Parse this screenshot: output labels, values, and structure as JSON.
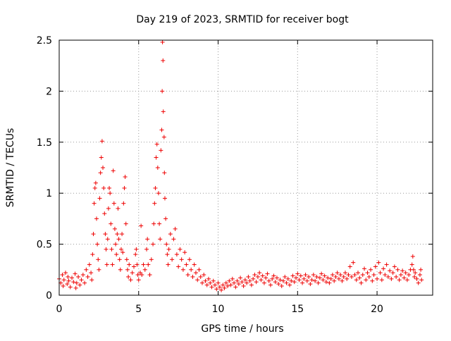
{
  "chart_data": {
    "type": "scatter",
    "title": "Day 219 of 2023, SRMTID for receiver bogt",
    "xlabel": "GPS time / hours",
    "ylabel": "SRMTID / TECUs",
    "xlim": [
      0,
      23.5
    ],
    "ylim": [
      0,
      2.5
    ],
    "x_ticks": [
      0,
      5,
      10,
      15,
      20
    ],
    "x_tick_labels": [
      "0",
      "5",
      "10",
      "15",
      "20"
    ],
    "y_ticks": [
      0,
      0.5,
      1,
      1.5,
      2,
      2.5
    ],
    "y_tick_labels": [
      "0",
      "0.5",
      "1",
      "1.5",
      "2",
      "2.5"
    ],
    "grid": true,
    "marker": "+",
    "color": "#ee0000",
    "series": [
      {
        "name": "SRMTID",
        "points": [
          [
            0.0,
            0.16
          ],
          [
            0.1,
            0.12
          ],
          [
            0.2,
            0.2
          ],
          [
            0.25,
            0.09
          ],
          [
            0.3,
            0.15
          ],
          [
            0.4,
            0.22
          ],
          [
            0.5,
            0.11
          ],
          [
            0.55,
            0.18
          ],
          [
            0.6,
            0.14
          ],
          [
            0.7,
            0.08
          ],
          [
            0.8,
            0.17
          ],
          [
            0.9,
            0.13
          ],
          [
            1.0,
            0.21
          ],
          [
            1.05,
            0.07
          ],
          [
            1.1,
            0.12
          ],
          [
            1.2,
            0.18
          ],
          [
            1.3,
            0.1
          ],
          [
            1.4,
            0.15
          ],
          [
            1.5,
            0.2
          ],
          [
            1.6,
            0.12
          ],
          [
            1.7,
            0.25
          ],
          [
            1.8,
            0.18
          ],
          [
            1.9,
            0.3
          ],
          [
            2.0,
            0.22
          ],
          [
            2.05,
            0.15
          ],
          [
            2.1,
            0.4
          ],
          [
            2.15,
            0.6
          ],
          [
            2.2,
            0.9
          ],
          [
            2.25,
            1.05
          ],
          [
            2.3,
            1.1
          ],
          [
            2.35,
            0.75
          ],
          [
            2.4,
            0.5
          ],
          [
            2.45,
            0.35
          ],
          [
            2.5,
            0.25
          ],
          [
            2.55,
            0.95
          ],
          [
            2.6,
            1.2
          ],
          [
            2.65,
            1.35
          ],
          [
            2.7,
            1.51
          ],
          [
            2.75,
            1.25
          ],
          [
            2.8,
            1.05
          ],
          [
            2.85,
            0.8
          ],
          [
            2.9,
            0.6
          ],
          [
            2.95,
            0.45
          ],
          [
            3.0,
            0.3
          ],
          [
            3.05,
            0.55
          ],
          [
            3.1,
            0.85
          ],
          [
            3.15,
            1.05
          ],
          [
            3.2,
            1.0
          ],
          [
            3.25,
            0.7
          ],
          [
            3.3,
            0.45
          ],
          [
            3.35,
            0.3
          ],
          [
            3.4,
            1.22
          ],
          [
            3.45,
            0.9
          ],
          [
            3.5,
            0.65
          ],
          [
            3.55,
            0.5
          ],
          [
            3.6,
            0.4
          ],
          [
            3.65,
            0.6
          ],
          [
            3.7,
            0.85
          ],
          [
            3.75,
            0.55
          ],
          [
            3.8,
            0.35
          ],
          [
            3.85,
            0.25
          ],
          [
            3.9,
            0.45
          ],
          [
            3.95,
            0.6
          ],
          [
            4.0,
            0.42
          ],
          [
            4.05,
            0.9
          ],
          [
            4.1,
            1.05
          ],
          [
            4.15,
            1.16
          ],
          [
            4.2,
            0.7
          ],
          [
            4.25,
            0.35
          ],
          [
            4.3,
            0.25
          ],
          [
            4.35,
            0.18
          ],
          [
            4.4,
            0.3
          ],
          [
            4.5,
            0.15
          ],
          [
            4.6,
            0.22
          ],
          [
            4.7,
            0.28
          ],
          [
            4.8,
            0.4
          ],
          [
            4.85,
            0.45
          ],
          [
            4.9,
            0.3
          ],
          [
            4.95,
            0.2
          ],
          [
            5.0,
            0.15
          ],
          [
            5.1,
            0.22
          ],
          [
            5.15,
            0.68
          ],
          [
            5.2,
            0.2
          ],
          [
            5.3,
            0.3
          ],
          [
            5.4,
            0.25
          ],
          [
            5.5,
            0.45
          ],
          [
            5.55,
            0.55
          ],
          [
            5.6,
            0.3
          ],
          [
            5.7,
            0.2
          ],
          [
            5.8,
            0.35
          ],
          [
            5.9,
            0.5
          ],
          [
            5.95,
            0.7
          ],
          [
            6.0,
            0.9
          ],
          [
            6.05,
            1.05
          ],
          [
            6.1,
            1.35
          ],
          [
            6.15,
            1.48
          ],
          [
            6.2,
            1.25
          ],
          [
            6.25,
            1.0
          ],
          [
            6.3,
            0.7
          ],
          [
            6.35,
            0.55
          ],
          [
            6.4,
            1.42
          ],
          [
            6.45,
            1.62
          ],
          [
            6.48,
            2.0
          ],
          [
            6.5,
            2.48
          ],
          [
            6.53,
            2.3
          ],
          [
            6.55,
            1.8
          ],
          [
            6.6,
            1.55
          ],
          [
            6.62,
            1.2
          ],
          [
            6.65,
            0.95
          ],
          [
            6.7,
            0.75
          ],
          [
            6.75,
            0.5
          ],
          [
            6.8,
            0.4
          ],
          [
            6.85,
            0.3
          ],
          [
            6.9,
            0.45
          ],
          [
            7.0,
            0.6
          ],
          [
            7.1,
            0.35
          ],
          [
            7.2,
            0.55
          ],
          [
            7.3,
            0.65
          ],
          [
            7.4,
            0.4
          ],
          [
            7.5,
            0.28
          ],
          [
            7.6,
            0.45
          ],
          [
            7.7,
            0.35
          ],
          [
            7.8,
            0.25
          ],
          [
            7.9,
            0.42
          ],
          [
            8.0,
            0.3
          ],
          [
            8.1,
            0.2
          ],
          [
            8.2,
            0.35
          ],
          [
            8.3,
            0.25
          ],
          [
            8.4,
            0.18
          ],
          [
            8.5,
            0.3
          ],
          [
            8.6,
            0.22
          ],
          [
            8.7,
            0.15
          ],
          [
            8.8,
            0.25
          ],
          [
            8.9,
            0.18
          ],
          [
            9.0,
            0.12
          ],
          [
            9.1,
            0.2
          ],
          [
            9.2,
            0.14
          ],
          [
            9.3,
            0.1
          ],
          [
            9.4,
            0.16
          ],
          [
            9.5,
            0.12
          ],
          [
            9.6,
            0.08
          ],
          [
            9.7,
            0.14
          ],
          [
            9.8,
            0.1
          ],
          [
            9.9,
            0.06
          ],
          [
            10.0,
            0.12
          ],
          [
            10.1,
            0.08
          ],
          [
            10.2,
            0.05
          ],
          [
            10.3,
            0.1
          ],
          [
            10.4,
            0.07
          ],
          [
            10.5,
            0.12
          ],
          [
            10.6,
            0.09
          ],
          [
            10.7,
            0.14
          ],
          [
            10.8,
            0.1
          ],
          [
            10.9,
            0.16
          ],
          [
            11.0,
            0.12
          ],
          [
            11.1,
            0.08
          ],
          [
            11.2,
            0.14
          ],
          [
            11.3,
            0.11
          ],
          [
            11.4,
            0.17
          ],
          [
            11.5,
            0.13
          ],
          [
            11.6,
            0.09
          ],
          [
            11.7,
            0.15
          ],
          [
            11.8,
            0.12
          ],
          [
            11.9,
            0.18
          ],
          [
            12.0,
            0.14
          ],
          [
            12.1,
            0.1
          ],
          [
            12.2,
            0.16
          ],
          [
            12.3,
            0.2
          ],
          [
            12.4,
            0.13
          ],
          [
            12.5,
            0.18
          ],
          [
            12.6,
            0.22
          ],
          [
            12.7,
            0.15
          ],
          [
            12.8,
            0.19
          ],
          [
            12.9,
            0.12
          ],
          [
            13.0,
            0.17
          ],
          [
            13.1,
            0.21
          ],
          [
            13.2,
            0.14
          ],
          [
            13.3,
            0.1
          ],
          [
            13.4,
            0.16
          ],
          [
            13.5,
            0.19
          ],
          [
            13.6,
            0.13
          ],
          [
            13.7,
            0.17
          ],
          [
            13.8,
            0.11
          ],
          [
            13.9,
            0.15
          ],
          [
            14.0,
            0.09
          ],
          [
            14.1,
            0.14
          ],
          [
            14.2,
            0.18
          ],
          [
            14.3,
            0.12
          ],
          [
            14.4,
            0.16
          ],
          [
            14.5,
            0.1
          ],
          [
            14.6,
            0.14
          ],
          [
            14.7,
            0.19
          ],
          [
            14.8,
            0.13
          ],
          [
            14.9,
            0.17
          ],
          [
            15.0,
            0.21
          ],
          [
            15.1,
            0.15
          ],
          [
            15.2,
            0.19
          ],
          [
            15.3,
            0.12
          ],
          [
            15.4,
            0.16
          ],
          [
            15.5,
            0.2
          ],
          [
            15.6,
            0.14
          ],
          [
            15.7,
            0.18
          ],
          [
            15.8,
            0.11
          ],
          [
            15.9,
            0.15
          ],
          [
            16.0,
            0.2
          ],
          [
            16.1,
            0.14
          ],
          [
            16.2,
            0.18
          ],
          [
            16.3,
            0.12
          ],
          [
            16.4,
            0.17
          ],
          [
            16.5,
            0.21
          ],
          [
            16.6,
            0.15
          ],
          [
            16.7,
            0.19
          ],
          [
            16.8,
            0.13
          ],
          [
            16.9,
            0.17
          ],
          [
            17.0,
            0.12
          ],
          [
            17.1,
            0.16
          ],
          [
            17.2,
            0.2
          ],
          [
            17.3,
            0.14
          ],
          [
            17.4,
            0.18
          ],
          [
            17.5,
            0.22
          ],
          [
            17.6,
            0.16
          ],
          [
            17.7,
            0.2
          ],
          [
            17.8,
            0.14
          ],
          [
            17.9,
            0.18
          ],
          [
            18.0,
            0.22
          ],
          [
            18.1,
            0.16
          ],
          [
            18.2,
            0.2
          ],
          [
            18.3,
            0.28
          ],
          [
            18.4,
            0.18
          ],
          [
            18.5,
            0.32
          ],
          [
            18.6,
            0.2
          ],
          [
            18.7,
            0.15
          ],
          [
            18.8,
            0.22
          ],
          [
            18.9,
            0.17
          ],
          [
            19.0,
            0.12
          ],
          [
            19.1,
            0.2
          ],
          [
            19.2,
            0.26
          ],
          [
            19.3,
            0.15
          ],
          [
            19.4,
            0.22
          ],
          [
            19.5,
            0.18
          ],
          [
            19.6,
            0.25
          ],
          [
            19.7,
            0.14
          ],
          [
            19.8,
            0.2
          ],
          [
            19.9,
            0.28
          ],
          [
            20.0,
            0.16
          ],
          [
            20.1,
            0.32
          ],
          [
            20.2,
            0.22
          ],
          [
            20.3,
            0.15
          ],
          [
            20.4,
            0.26
          ],
          [
            20.5,
            0.2
          ],
          [
            20.6,
            0.3
          ],
          [
            20.7,
            0.18
          ],
          [
            20.8,
            0.24
          ],
          [
            20.9,
            0.16
          ],
          [
            21.0,
            0.22
          ],
          [
            21.1,
            0.28
          ],
          [
            21.2,
            0.18
          ],
          [
            21.3,
            0.25
          ],
          [
            21.4,
            0.15
          ],
          [
            21.5,
            0.2
          ],
          [
            21.6,
            0.24
          ],
          [
            21.7,
            0.17
          ],
          [
            21.8,
            0.22
          ],
          [
            21.9,
            0.15
          ],
          [
            22.0,
            0.2
          ],
          [
            22.1,
            0.25
          ],
          [
            22.2,
            0.3
          ],
          [
            22.25,
            0.38
          ],
          [
            22.3,
            0.25
          ],
          [
            22.35,
            0.18
          ],
          [
            22.4,
            0.22
          ],
          [
            22.5,
            0.16
          ],
          [
            22.6,
            0.12
          ],
          [
            22.7,
            0.2
          ],
          [
            22.75,
            0.25
          ],
          [
            22.8,
            0.15
          ]
        ]
      }
    ]
  }
}
